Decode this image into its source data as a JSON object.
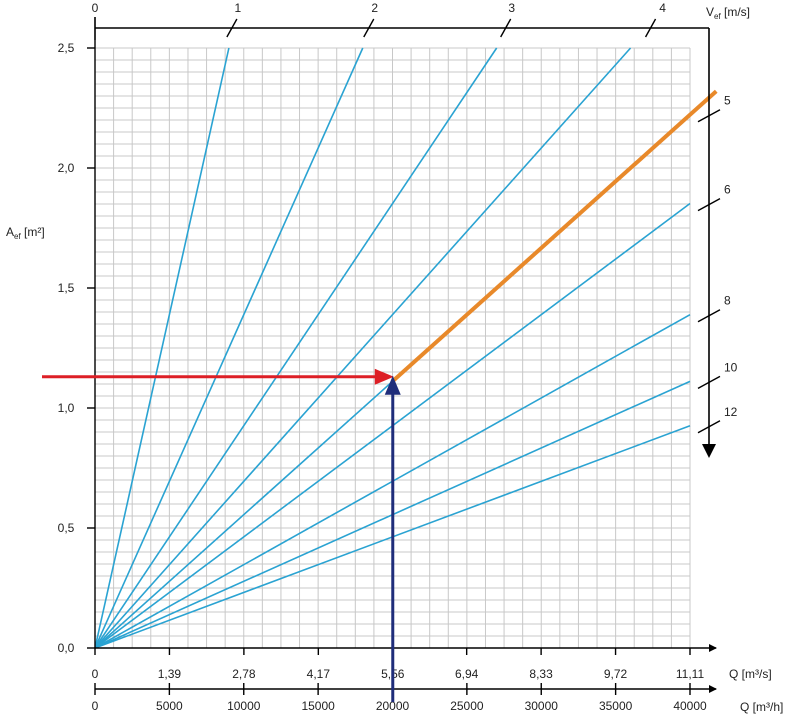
{
  "chart_data": {
    "type": "line",
    "y_axis": {
      "label_main": "A",
      "label_sub": "ef",
      "label_unit": " [m²]",
      "range": [
        0,
        2.5
      ],
      "ticks": [
        0,
        0.5,
        1.0,
        1.5,
        2.0,
        2.5
      ],
      "tick_labels": [
        "0,0",
        "0,5",
        "1,0",
        "1,5",
        "2,0",
        "2,5"
      ]
    },
    "x_axis_primary": {
      "label": "Q [m³/s]",
      "range": [
        0,
        11.11
      ],
      "ticks": [
        0,
        1.39,
        2.78,
        4.17,
        5.56,
        6.94,
        8.33,
        9.72,
        11.11
      ],
      "tick_labels": [
        "0",
        "1,39",
        "2,78",
        "4,17",
        "5,56",
        "6,94",
        "8,33",
        "9,72",
        "11,11"
      ]
    },
    "x_axis_secondary": {
      "label": "Q [m³/h]",
      "range": [
        0,
        40000
      ],
      "ticks": [
        0,
        5000,
        10000,
        15000,
        20000,
        25000,
        30000,
        35000,
        40000
      ],
      "tick_labels": [
        "0",
        "5000",
        "10000",
        "15000",
        "20000",
        "25000",
        "30000",
        "35000",
        "40000"
      ]
    },
    "velocity_axis": {
      "label_main": "V",
      "label_sub": "ef",
      "label_unit": " [m/s]",
      "top_labels": [
        "0",
        "1",
        "2",
        "3",
        "4"
      ],
      "right_labels": [
        "5",
        "6",
        "8",
        "10",
        "12"
      ]
    },
    "series": [
      {
        "velocity": 1,
        "Q_m3s": [
          0,
          2.5
        ],
        "A_m2": [
          0,
          2.5
        ]
      },
      {
        "velocity": 2,
        "Q_m3s": [
          0,
          5.0
        ],
        "A_m2": [
          0,
          2.5
        ]
      },
      {
        "velocity": 3,
        "Q_m3s": [
          0,
          7.5
        ],
        "A_m2": [
          0,
          2.5
        ]
      },
      {
        "velocity": 4,
        "Q_m3s": [
          0,
          10.0
        ],
        "A_m2": [
          0,
          2.5
        ]
      },
      {
        "velocity": 5,
        "Q_m3s": [
          0,
          11.11
        ],
        "A_m2": [
          0,
          2.222
        ]
      },
      {
        "velocity": 6,
        "Q_m3s": [
          0,
          11.11
        ],
        "A_m2": [
          0,
          1.852
        ]
      },
      {
        "velocity": 8,
        "Q_m3s": [
          0,
          11.11
        ],
        "A_m2": [
          0,
          1.389
        ]
      },
      {
        "velocity": 10,
        "Q_m3s": [
          0,
          11.11
        ],
        "A_m2": [
          0,
          1.111
        ]
      },
      {
        "velocity": 12,
        "Q_m3s": [
          0,
          11.11
        ],
        "A_m2": [
          0,
          0.926
        ]
      }
    ],
    "highlight": {
      "velocity": 5,
      "color": "#e8892a",
      "Q_m3s": [
        5.56,
        11.6
      ],
      "A_m2": [
        1.112,
        2.32
      ]
    },
    "annotations": {
      "horizontal_arrow": {
        "color": "#dd1f26",
        "A_m2": 1.13,
        "Q_from_m3s": -1.35,
        "Q_to_m3s": 5.56
      },
      "vertical_arrow": {
        "color": "#1f2d7a",
        "Q_m3s": 5.56,
        "A_from_m2": -0.2,
        "A_to_m2": 1.13
      }
    },
    "grid": true,
    "colors": {
      "series": "#2aa3d2",
      "grid": "#c8c8c8",
      "axis": "#000000"
    }
  }
}
